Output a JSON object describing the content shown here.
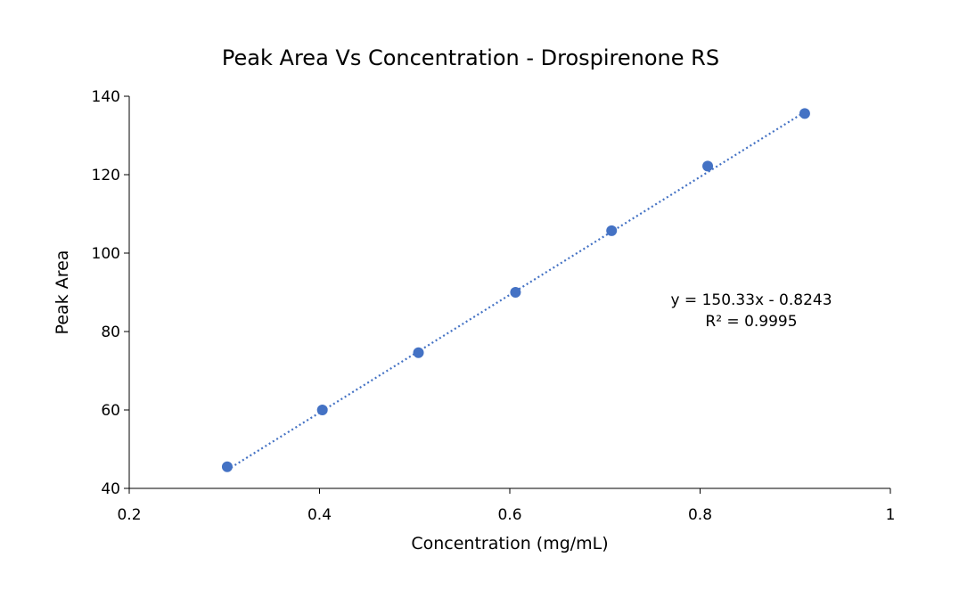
{
  "chart_data": {
    "type": "scatter",
    "title": "Peak Area Vs Concentration - Drospirenone RS",
    "xlabel": "Concentration (mg/mL)",
    "ylabel": "Peak Area",
    "xlim": [
      0.2,
      1
    ],
    "ylim": [
      40,
      140
    ],
    "xticks": [
      "0.2",
      "0.4",
      "0.6",
      "0.8",
      "1"
    ],
    "yticks": [
      "40",
      "60",
      "80",
      "100",
      "120",
      "140"
    ],
    "grid": false,
    "legend": "none",
    "points": [
      {
        "x": 0.303,
        "y": 45.5
      },
      {
        "x": 0.403,
        "y": 60.0
      },
      {
        "x": 0.504,
        "y": 74.6
      },
      {
        "x": 0.606,
        "y": 90.0
      },
      {
        "x": 0.707,
        "y": 105.7
      },
      {
        "x": 0.808,
        "y": 122.2
      },
      {
        "x": 0.91,
        "y": 135.6
      }
    ],
    "trendline": {
      "type": "linear",
      "slope": 150.33,
      "intercept": -0.8243,
      "style": "dotted"
    },
    "annotations": {
      "equation": "y = 150.33x - 0.8243",
      "r_squared": "R² = 0.9995"
    },
    "colors": {
      "marker": "#4472C4",
      "trendline": "#4472C4",
      "axis": "#000000"
    }
  }
}
